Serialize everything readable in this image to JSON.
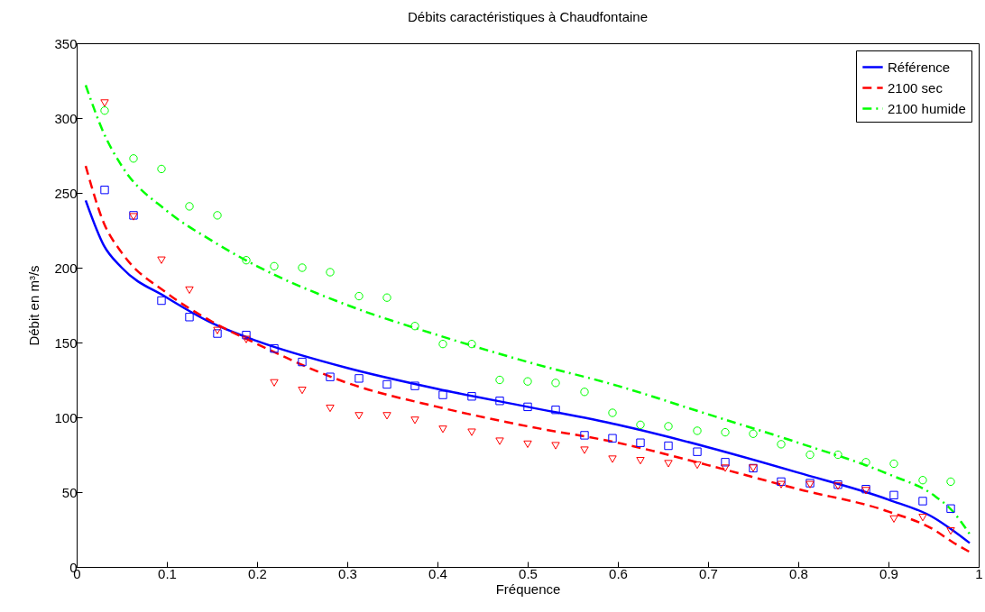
{
  "chart_data": {
    "type": "line",
    "title": "Débits caractéristiques à Chaudfontaine",
    "xlabel": "Fréquence",
    "ylabel": "Débit en m³/s",
    "xlim": [
      0,
      1
    ],
    "xticks": [
      0,
      0.1,
      0.2,
      0.3,
      0.4,
      0.5,
      0.6,
      0.7,
      0.8,
      0.9,
      1
    ],
    "ylim": [
      0,
      350
    ],
    "yticks": [
      0,
      50,
      100,
      150,
      200,
      250,
      300,
      350
    ],
    "legend": "top right",
    "series": [
      {
        "name": "Référence",
        "color": "#0000ff",
        "line_style": "solid",
        "x": [
          0.01,
          0.03,
          0.05,
          0.1,
          0.15,
          0.2,
          0.3,
          0.4,
          0.5,
          0.6,
          0.7,
          0.8,
          0.9,
          0.95,
          0.97,
          0.99
        ],
        "values": [
          245,
          215,
          200,
          180,
          163,
          151,
          133,
          119,
          107,
          95,
          80,
          63,
          45,
          33,
          25,
          16
        ]
      },
      {
        "name": "2100 sec",
        "color": "#ff0000",
        "line_style": "dashed",
        "x": [
          0.01,
          0.03,
          0.05,
          0.1,
          0.15,
          0.2,
          0.3,
          0.4,
          0.5,
          0.6,
          0.7,
          0.8,
          0.9,
          0.95,
          0.97,
          0.99
        ],
        "values": [
          268,
          230,
          210,
          183,
          164,
          149,
          123,
          107,
          94,
          83,
          68,
          52,
          37,
          25,
          17,
          10
        ]
      },
      {
        "name": "2100 humide",
        "color": "#00ff00",
        "line_style": "dashdot",
        "x": [
          0.01,
          0.03,
          0.05,
          0.1,
          0.15,
          0.2,
          0.3,
          0.4,
          0.5,
          0.6,
          0.7,
          0.8,
          0.9,
          0.95,
          0.97,
          0.99
        ],
        "values": [
          322,
          290,
          268,
          238,
          218,
          201,
          175,
          155,
          137,
          121,
          102,
          83,
          62,
          48,
          38,
          22
        ]
      },
      {
        "type": "scatter",
        "color": "#0000ff",
        "marker": "square",
        "x": [
          0.031,
          0.063,
          0.094,
          0.125,
          0.156,
          0.188,
          0.219,
          0.25,
          0.281,
          0.313,
          0.344,
          0.375,
          0.406,
          0.438,
          0.469,
          0.5,
          0.531,
          0.563,
          0.594,
          0.625,
          0.656,
          0.688,
          0.719,
          0.75,
          0.781,
          0.813,
          0.844,
          0.875,
          0.906,
          0.938,
          0.969
        ],
        "values": [
          252,
          235,
          178,
          167,
          156,
          155,
          146,
          137,
          127,
          126,
          122,
          121,
          115,
          114,
          111,
          107,
          105,
          88,
          86,
          83,
          81,
          77,
          70,
          66,
          57,
          56,
          55,
          52,
          48,
          44,
          39
        ]
      },
      {
        "type": "scatter",
        "color": "#ff0000",
        "marker": "triangle",
        "x": [
          0.031,
          0.063,
          0.094,
          0.125,
          0.156,
          0.188,
          0.219,
          0.25,
          0.281,
          0.313,
          0.344,
          0.375,
          0.406,
          0.438,
          0.469,
          0.5,
          0.531,
          0.563,
          0.594,
          0.625,
          0.656,
          0.688,
          0.719,
          0.75,
          0.781,
          0.813,
          0.844,
          0.875,
          0.906,
          0.938,
          0.969
        ],
        "values": [
          310,
          234,
          205,
          185,
          158,
          152,
          123,
          118,
          106,
          101,
          101,
          98,
          92,
          90,
          84,
          82,
          81,
          78,
          72,
          71,
          69,
          68,
          66,
          66,
          55,
          55,
          54,
          51,
          32,
          33,
          24
        ]
      },
      {
        "type": "scatter",
        "color": "#00ff00",
        "marker": "circle",
        "x": [
          0.031,
          0.063,
          0.094,
          0.125,
          0.156,
          0.188,
          0.219,
          0.25,
          0.281,
          0.313,
          0.344,
          0.375,
          0.406,
          0.438,
          0.469,
          0.5,
          0.531,
          0.563,
          0.594,
          0.625,
          0.656,
          0.688,
          0.719,
          0.75,
          0.781,
          0.813,
          0.844,
          0.875,
          0.906,
          0.938,
          0.969
        ],
        "values": [
          305,
          273,
          266,
          241,
          235,
          205,
          201,
          200,
          197,
          181,
          180,
          161,
          149,
          149,
          125,
          124,
          123,
          117,
          103,
          95,
          94,
          91,
          90,
          89,
          82,
          75,
          75,
          70,
          69,
          58,
          57
        ]
      }
    ]
  }
}
